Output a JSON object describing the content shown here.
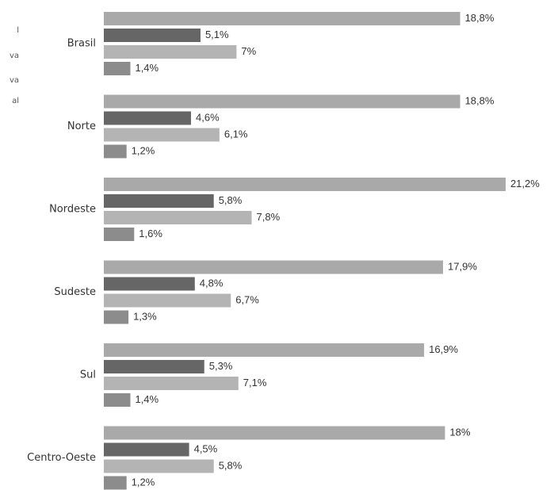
{
  "chart_data": {
    "type": "hbar",
    "categories": [
      "Brasil",
      "Norte",
      "Nordeste",
      "Sudeste",
      "Sul",
      "Centro-Oeste"
    ],
    "series": [
      {
        "name": "l",
        "color": "#a9a9a9",
        "values": [
          18.8,
          18.8,
          21.2,
          17.9,
          16.9,
          18
        ],
        "value_labels": [
          "18,8%",
          "18,8%",
          "21,2%",
          "17,9%",
          "16,9%",
          "18%"
        ]
      },
      {
        "name": "va",
        "color": "#666666",
        "values": [
          5.1,
          4.6,
          5.8,
          4.8,
          5.3,
          4.5
        ],
        "value_labels": [
          "5,1%",
          "4,6%",
          "5,8%",
          "4,8%",
          "5,3%",
          "4,5%"
        ]
      },
      {
        "name": "va",
        "color": "#b4b4b4",
        "values": [
          7,
          6.1,
          7.8,
          6.7,
          7.1,
          5.8
        ],
        "value_labels": [
          "7%",
          "6,1%",
          "7,8%",
          "6,7%",
          "7,1%",
          "5,8%"
        ]
      },
      {
        "name": "al",
        "color": "#8c8c8c",
        "values": [
          1.4,
          1.2,
          1.6,
          1.3,
          1.4,
          1.2
        ],
        "value_labels": [
          "1,4%",
          "1,2%",
          "1,6%",
          "1,3%",
          "1,4%",
          "1,2%"
        ]
      }
    ],
    "xlim": [
      0,
      23
    ]
  }
}
